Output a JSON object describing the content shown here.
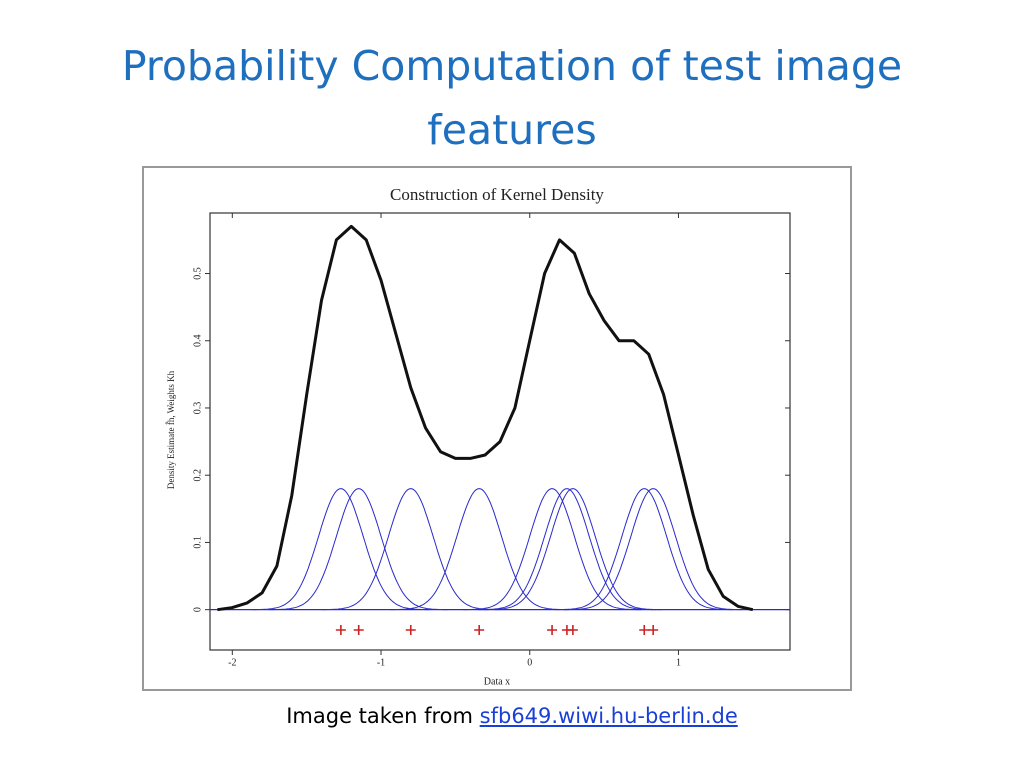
{
  "slide": {
    "title": "Probability Computation of test image features",
    "caption": "Image taken from ",
    "link": "sfb649.wiwi.hu-berlin.de"
  },
  "chart_data": {
    "type": "kde",
    "title": "Construction of Kernel Density",
    "x_label": "Data x",
    "y_label": "Density Estimate f̂h, Weights Kh",
    "xlim": [
      -2.15,
      1.75
    ],
    "ylim": [
      -0.06,
      0.59
    ],
    "xticks": [
      -2,
      -1,
      0,
      1
    ],
    "yticks": [
      0,
      0.1,
      0.2,
      0.3,
      0.4,
      0.5
    ],
    "points": [
      -1.27,
      -1.15,
      -0.8,
      -0.34,
      0.15,
      0.25,
      0.29,
      0.77,
      0.83
    ],
    "point_color": "#cc2222",
    "kernel_color": "#2a2acc",
    "kernel_peak": 0.18,
    "bandwidth": 0.15,
    "x": [
      -2.1,
      -2.0,
      -1.9,
      -1.8,
      -1.7,
      -1.6,
      -1.5,
      -1.4,
      -1.3,
      -1.2,
      -1.1,
      -1.0,
      -0.9,
      -0.8,
      -0.7,
      -0.6,
      -0.5,
      -0.4,
      -0.3,
      -0.2,
      -0.1,
      0.0,
      0.1,
      0.2,
      0.3,
      0.4,
      0.5,
      0.6,
      0.7,
      0.8,
      0.9,
      1.0,
      1.1,
      1.2,
      1.3,
      1.4,
      1.5
    ],
    "series": [
      {
        "color": "#111111",
        "values": [
          0,
          0.003,
          0.01,
          0.025,
          0.065,
          0.17,
          0.32,
          0.46,
          0.55,
          0.57,
          0.55,
          0.49,
          0.41,
          0.33,
          0.27,
          0.235,
          0.225,
          0.225,
          0.23,
          0.25,
          0.3,
          0.4,
          0.5,
          0.55,
          0.53,
          0.47,
          0.43,
          0.4,
          0.4,
          0.38,
          0.32,
          0.23,
          0.14,
          0.06,
          0.02,
          0.005,
          0
        ]
      }
    ]
  }
}
